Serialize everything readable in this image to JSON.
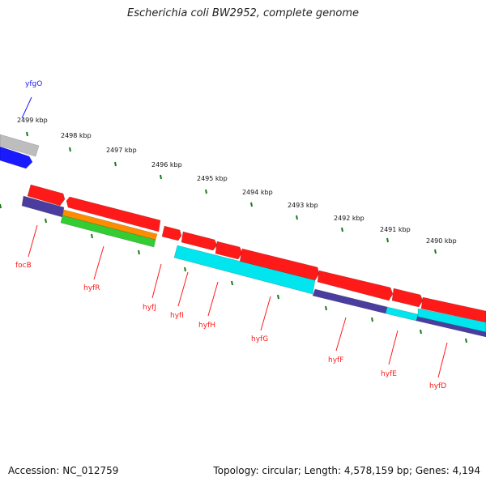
{
  "title": "Escherichia coli BW2952, complete genome",
  "footer": {
    "accession": "Accession: NC_012759",
    "summary": "Topology: circular; Length: 4,578,159 bp; Genes: 4,194"
  },
  "colors": {
    "forward_gene": "#ff1a1a",
    "reverse_gene": "#1a1aff",
    "cds_cyan": "#00e5ee",
    "cds_purple": "#4a3d9e",
    "cds_orange": "#ff8c00",
    "cds_green": "#33cc33",
    "backbone": "#888888",
    "tick": "#1a7a1a"
  },
  "scale": {
    "unit": "kbp",
    "ticks": [
      {
        "label": "2499 kbp"
      },
      {
        "label": "2498 kbp"
      },
      {
        "label": "2497 kbp"
      },
      {
        "label": "2496 kbp"
      },
      {
        "label": "2495 kbp"
      },
      {
        "label": "2494 kbp"
      },
      {
        "label": "2493 kbp"
      },
      {
        "label": "2492 kbp"
      },
      {
        "label": "2491 kbp"
      },
      {
        "label": "2490 kbp"
      }
    ]
  },
  "genes": [
    {
      "name": "yfgO",
      "strand": "reverse",
      "color": "blue"
    },
    {
      "name": "focB",
      "strand": "forward",
      "color": "red"
    },
    {
      "name": "hyfR",
      "strand": "forward",
      "color": "red"
    },
    {
      "name": "hyfJ",
      "strand": "forward",
      "color": "red"
    },
    {
      "name": "hyfI",
      "strand": "forward",
      "color": "red"
    },
    {
      "name": "hyfH",
      "strand": "forward",
      "color": "red"
    },
    {
      "name": "hyfG",
      "strand": "forward",
      "color": "red"
    },
    {
      "name": "hyfF",
      "strand": "forward",
      "color": "red"
    },
    {
      "name": "hyfE",
      "strand": "forward",
      "color": "red"
    },
    {
      "name": "hyfD",
      "strand": "forward",
      "color": "red"
    }
  ]
}
